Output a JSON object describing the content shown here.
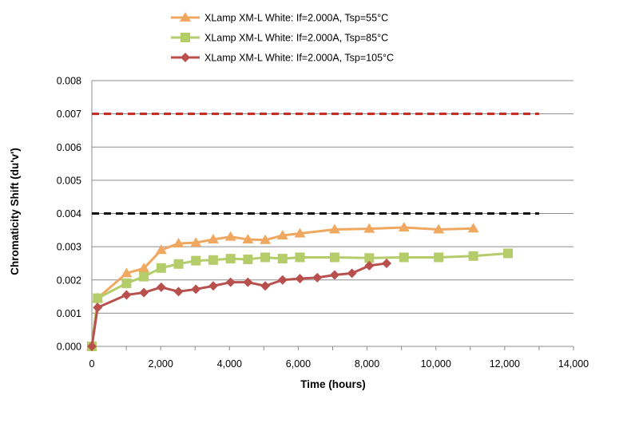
{
  "chart_data": {
    "type": "line",
    "title": "",
    "xlabel": "Time (hours)",
    "ylabel": "Chromaticity Shift (du'v')",
    "xlim": [
      0,
      14000
    ],
    "ylim": [
      0,
      0.008
    ],
    "x_ticks": [
      "0",
      "2,000",
      "4,000",
      "6,000",
      "8,000",
      "10,000",
      "12,000",
      "14,000"
    ],
    "y_ticks": [
      "0.000",
      "0.001",
      "0.002",
      "0.003",
      "0.004",
      "0.005",
      "0.006",
      "0.007",
      "0.008"
    ],
    "grid": "horizontal",
    "legend_position": "top",
    "series": [
      {
        "name": "XLamp XM-L White: If=2.000A, Tsp=55°C",
        "color": "#F0A860",
        "marker": "triangle",
        "x": [
          0,
          168,
          1008,
          1512,
          2016,
          2520,
          3024,
          3528,
          4032,
          4536,
          5040,
          5544,
          6048,
          7056,
          8064,
          9072,
          10080,
          11088
        ],
        "y": [
          0.0,
          0.00145,
          0.0022,
          0.00235,
          0.0029,
          0.0031,
          0.00312,
          0.00322,
          0.0033,
          0.00322,
          0.0032,
          0.00334,
          0.0034,
          0.00352,
          0.00354,
          0.00358,
          0.00352,
          0.00355
        ]
      },
      {
        "name": "XLamp XM-L White: If=2.000A, Tsp=85°C",
        "color": "#B5CC6A",
        "marker": "square",
        "x": [
          0,
          168,
          1008,
          1512,
          2016,
          2520,
          3024,
          3528,
          4032,
          4536,
          5040,
          5544,
          6048,
          7056,
          8064,
          9072,
          10080,
          11088,
          12096
        ],
        "y": [
          0.0,
          0.00145,
          0.0019,
          0.0021,
          0.00236,
          0.00248,
          0.00258,
          0.0026,
          0.00264,
          0.00262,
          0.00268,
          0.00264,
          0.00268,
          0.00268,
          0.00266,
          0.00268,
          0.00268,
          0.00272,
          0.0028
        ]
      },
      {
        "name": "XLamp XM-L White: If=2.000A, Tsp=105°C",
        "color": "#B8504E",
        "marker": "diamond",
        "x": [
          0,
          168,
          1008,
          1512,
          2016,
          2520,
          3024,
          3528,
          4032,
          4536,
          5040,
          5544,
          6048,
          6552,
          7056,
          7560,
          8064,
          8568
        ],
        "y": [
          0.0,
          0.00117,
          0.00155,
          0.00162,
          0.00178,
          0.00165,
          0.00172,
          0.00182,
          0.00193,
          0.00193,
          0.00182,
          0.002,
          0.00204,
          0.00207,
          0.00215,
          0.0022,
          0.00243,
          0.0025
        ]
      }
    ],
    "reference_lines": [
      {
        "y": 0.007,
        "x_start": 0,
        "x_end": 13000,
        "color": "#C0281C",
        "style": "dashed"
      },
      {
        "y": 0.004,
        "x_start": 0,
        "x_end": 13000,
        "color": "#111111",
        "style": "dashed"
      }
    ]
  }
}
